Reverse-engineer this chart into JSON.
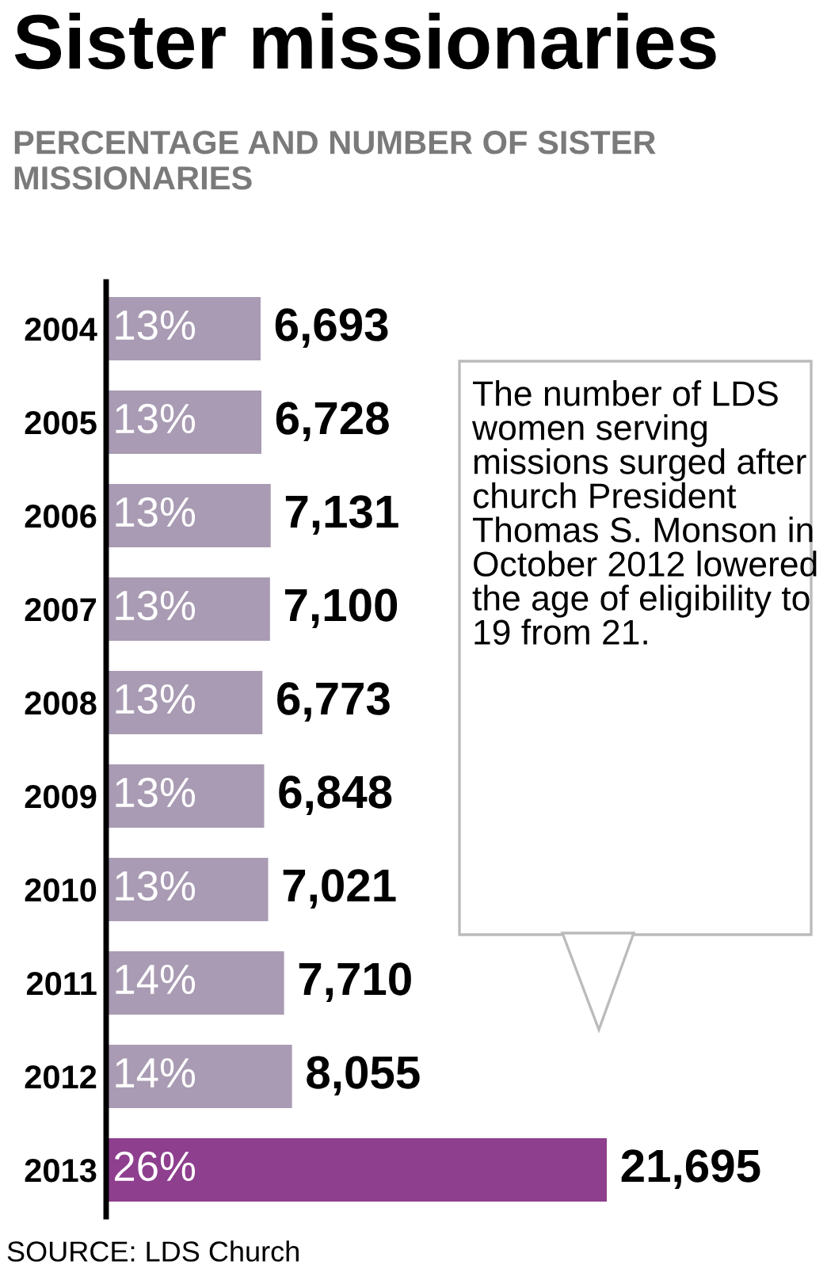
{
  "chart_data": {
    "type": "bar",
    "orientation": "horizontal",
    "title": "Sister missionaries",
    "subtitle": "PERCENTAGE AND NUMBER OF SISTER MISSIONARIES",
    "categories": [
      "2004",
      "2005",
      "2006",
      "2007",
      "2008",
      "2009",
      "2010",
      "2011",
      "2012",
      "2013"
    ],
    "values": [
      6693,
      6728,
      7131,
      7100,
      6773,
      6848,
      7021,
      7710,
      8055,
      21695
    ],
    "colors": [
      "#a99bb3",
      "#a99bb3",
      "#a99bb3",
      "#a99bb3",
      "#a99bb3",
      "#a99bb3",
      "#a99bb3",
      "#a99bb3",
      "#a99bb3",
      "#8e3f8e"
    ],
    "value_labels": [
      "6,693",
      "6,728",
      "7,131",
      "7,100",
      "6,773",
      "6,848",
      "7,021",
      "7,710",
      "8,055",
      "21,695"
    ],
    "tick_labels": "y",
    "grid": false,
    "legend": false,
    "annotations": [
      "The number of LDS women serving missions surged after church President Thomas S. Monson in October 2012 lowered the age of eligibility to 19 from 21.",
      "SOURCE: LDS Church",
      "13%",
      "13%",
      "13%",
      "13%",
      "13%",
      "13%",
      "13%",
      "14%",
      "14%",
      "26%"
    ]
  }
}
